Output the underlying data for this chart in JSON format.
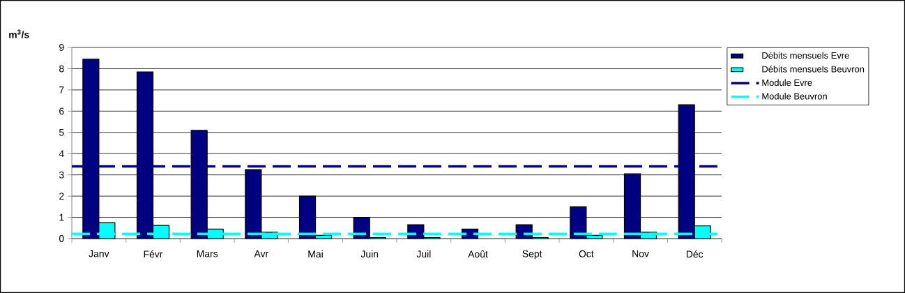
{
  "chart_data": {
    "type": "bar",
    "ylabel": "**m$^{3}$/s**",
    "categories": [
      "Janv",
      "Févr",
      "Mars",
      "Avr",
      "Mai",
      "Juin",
      "Juil",
      "Août",
      "Sept",
      "Oct",
      "Nov",
      "Déc"
    ],
    "series": [
      {
        "name": "Débits mensuels Evre",
        "color": "#000080",
        "values": [
          8.45,
          7.85,
          5.1,
          3.25,
          2.0,
          1.0,
          0.65,
          0.45,
          0.65,
          1.5,
          3.05,
          6.3
        ]
      },
      {
        "name": "Débits mensuels Beuvron",
        "color": "#00ffff",
        "values": [
          0.75,
          0.62,
          0.45,
          0.3,
          0.15,
          0.05,
          0.05,
          null,
          0.05,
          0.15,
          0.3,
          0.6
        ]
      }
    ],
    "ref_lines": [
      {
        "axis": "y",
        "value": 3.4,
        "label": "Module Evre",
        "color": "#000080",
        "line_style": "dashed"
      },
      {
        "axis": "y",
        "value": 0.22,
        "label": "Module Beuvron",
        "color": "#00ffff",
        "line_style": "dashed"
      }
    ],
    "ylim": [
      0,
      9
    ],
    "yticks": [
      0,
      1,
      2,
      3,
      4,
      5,
      6,
      7,
      8,
      9
    ],
    "grid": "y",
    "legend": "right"
  }
}
